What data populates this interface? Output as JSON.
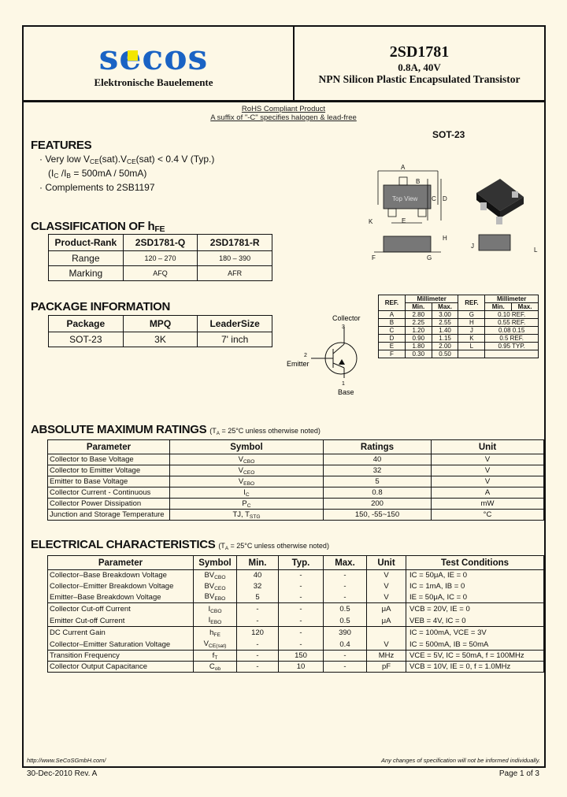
{
  "header": {
    "brand": "secos",
    "brand_subtitle": "Elektronische Bauelemente",
    "part_number": "2SD1781",
    "rating": "0.8A, 40V",
    "description": "NPN Silicon Plastic Encapsulated Transistor"
  },
  "rohs": {
    "line1": "RoHS Compliant Product",
    "line2": "A suffix of \"-C\" specifies halogen & lead-free"
  },
  "features": {
    "title": "FEATURES",
    "item1_a": "Very low V",
    "item1_sub1": "CE",
    "item1_b": "(sat).V",
    "item1_sub2": "CE",
    "item1_c": "(sat) < 0.4 V (Typ.)",
    "item1_line2_a": "(I",
    "item1_line2_sub1": "C",
    "item1_line2_b": " /I",
    "item1_line2_sub2": "B",
    "item1_line2_c": " = 500mA / 50mA)",
    "item2": "Complements to 2SB1197"
  },
  "classification": {
    "title": "CLASSIFICATION OF h",
    "title_sub": "FE",
    "headers": [
      "Product-Rank",
      "2SD1781-Q",
      "2SD1781-R"
    ],
    "rows": [
      [
        "Range",
        "120 – 270",
        "180 – 390"
      ],
      [
        "Marking",
        "AFQ",
        "AFR"
      ]
    ]
  },
  "package_info": {
    "title": "PACKAGE INFORMATION",
    "headers": [
      "Package",
      "MPQ",
      "LeaderSize"
    ],
    "rows": [
      [
        "SOT-23",
        "3K",
        "7' inch"
      ]
    ]
  },
  "package_drawing": {
    "title": "SOT-23",
    "top_view_label": "Top View",
    "dim_letters": [
      "A",
      "B",
      "C",
      "D",
      "E",
      "F",
      "G",
      "H",
      "J",
      "K",
      "L"
    ],
    "pin_labels": [
      "1",
      "2",
      "3"
    ]
  },
  "dimensions": {
    "headers": [
      "REF.",
      "Millimeter",
      "REF.",
      "Millimeter"
    ],
    "subheaders": [
      "Min.",
      "Max.",
      "Min.",
      "Max."
    ],
    "rows": [
      [
        "A",
        "2.80",
        "3.00",
        "G",
        "0.10 REF."
      ],
      [
        "B",
        "2.25",
        "2.55",
        "H",
        "0.55 REF."
      ],
      [
        "C",
        "1.20",
        "1.40",
        "J",
        "0.08     0.15"
      ],
      [
        "D",
        "0.90",
        "1.15",
        "K",
        "0.5 REF."
      ],
      [
        "E",
        "1.80",
        "2.00",
        "L",
        "0.95 TYP."
      ],
      [
        "F",
        "0.30",
        "0.50",
        "",
        ""
      ]
    ]
  },
  "symbol": {
    "collector": "Collector",
    "emitter": "Emitter",
    "base": "Base",
    "pin_collector": "3",
    "pin_emitter": "2",
    "pin_base": "1"
  },
  "abs_max": {
    "title": "ABSOLUTE MAXIMUM RATINGS",
    "note_a": "(T",
    "note_sub": "A",
    "note_b": " = 25°C unless otherwise noted)",
    "headers": [
      "Parameter",
      "Symbol",
      "Ratings",
      "Unit"
    ],
    "rows": [
      {
        "param": "Collector to Base Voltage",
        "sym": [
          "V",
          "CBO"
        ],
        "val": "40",
        "unit": "V"
      },
      {
        "param": "Collector to Emitter Voltage",
        "sym": [
          "V",
          "CEO"
        ],
        "val": "32",
        "unit": "V"
      },
      {
        "param": "Emitter to Base Voltage",
        "sym": [
          "V",
          "EBO"
        ],
        "val": "5",
        "unit": "V"
      },
      {
        "param": "Collector Current - Continuous",
        "sym": [
          "I",
          "C"
        ],
        "val": "0.8",
        "unit": "A"
      },
      {
        "param": "Collector Power Dissipation",
        "sym": [
          "P",
          "C"
        ],
        "val": "200",
        "unit": "mW"
      },
      {
        "param": "Junction and Storage Temperature",
        "sym": [
          "TJ, T",
          "STG"
        ],
        "val": "150, -55~150",
        "unit": "°C"
      }
    ]
  },
  "electrical": {
    "title": "ELECTRICAL CHARACTERISTICS",
    "note_a": "(T",
    "note_sub": "A",
    "note_b": " = 25°C unless otherwise noted)",
    "headers": [
      "Parameter",
      "Symbol",
      "Min.",
      "Typ.",
      "Max.",
      "Unit",
      "Test Conditions"
    ],
    "rows": [
      {
        "g": 1,
        "param": "Collector–Base Breakdown Voltage",
        "sym": [
          "BV",
          "CBO"
        ],
        "min": "40",
        "typ": "-",
        "max": "-",
        "unit": "V",
        "cond": "IC = 50μA, IE = 0"
      },
      {
        "g": 0,
        "param": "Collector–Emitter Breakdown Voltage",
        "sym": [
          "BV",
          "CEO"
        ],
        "min": "32",
        "typ": "-",
        "max": "-",
        "unit": "V",
        "cond": "IC = 1mA, IB = 0"
      },
      {
        "g": 0,
        "param": "Emitter–Base Breakdown Voltage",
        "sym": [
          "BV",
          "EBO"
        ],
        "min": "5",
        "typ": "-",
        "max": "-",
        "unit": "V",
        "cond": "IE = 50μA, IC = 0"
      },
      {
        "g": 1,
        "param": "Collector Cut-off Current",
        "sym": [
          "I",
          "CBO"
        ],
        "min": "-",
        "typ": "-",
        "max": "0.5",
        "unit": "μA",
        "cond": "VCB = 20V, IE = 0"
      },
      {
        "g": 0,
        "param": "Emitter Cut-off Current",
        "sym": [
          "I",
          "EBO"
        ],
        "min": "-",
        "typ": "-",
        "max": "0.5",
        "unit": "μA",
        "cond": "VEB = 4V, IC = 0"
      },
      {
        "g": 1,
        "param": "DC Current Gain",
        "sym": [
          "h",
          "FE"
        ],
        "min": "120",
        "typ": "-",
        "max": "390",
        "unit": "",
        "cond": "IC = 100mA, VCE = 3V"
      },
      {
        "g": 0,
        "param": "Collector–Emitter Saturation Voltage",
        "sym": [
          "V",
          "CE(sat)"
        ],
        "min": "-",
        "typ": "-",
        "max": "0.4",
        "unit": "V",
        "cond": "IC = 500mA, IB = 50mA"
      },
      {
        "g": 1,
        "param": "Transition Frequency",
        "sym": [
          "f",
          "T"
        ],
        "min": "-",
        "typ": "150",
        "max": "-",
        "unit": "MHz",
        "cond": "VCE = 5V, IC = 50mA, f = 100MHz"
      },
      {
        "g": 1,
        "param": "Collector Output Capacitance",
        "sym": [
          "C",
          "ob"
        ],
        "min": "-",
        "typ": "10",
        "max": "-",
        "unit": "pF",
        "cond": "VCB = 10V, IE = 0, f = 1.0MHz"
      }
    ]
  },
  "footer": {
    "url": "http://www.SeCoSGmbH.com/",
    "disclaimer": "Any changes of specification will not be informed individually.",
    "date_rev": "30-Dec-2010 Rev. A",
    "page": "Page 1 of 3"
  },
  "colors": {
    "background": "#fdf8e6",
    "brand_blue": "#1a63c4",
    "brand_yellow": "#f2e600"
  }
}
